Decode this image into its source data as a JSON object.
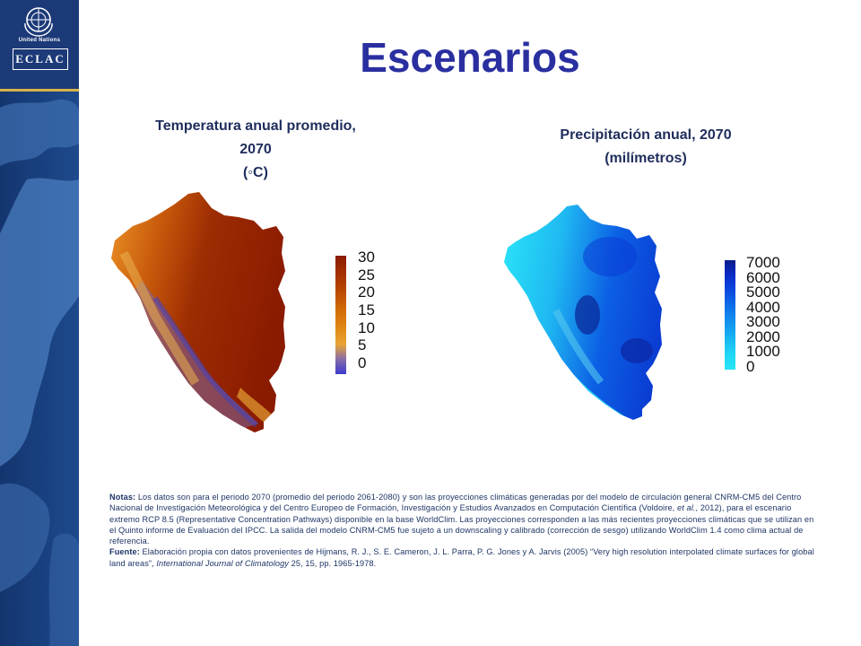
{
  "slide": {
    "title": "Escenarios",
    "logo": {
      "un_text": "United Nations",
      "eclac_text": "ECLAC"
    }
  },
  "maps": [
    {
      "title_line1": "Temperatura anual promedio,",
      "title_line2": "2070",
      "title_line3": "(◦C)",
      "colorbar": {
        "ticks": [
          "30",
          "25",
          "20",
          "15",
          "10",
          "5",
          "0"
        ],
        "colors": [
          "#8a1b00",
          "#b33f00",
          "#d06a05",
          "#e08a15",
          "#e8a436",
          "#8a6fa6",
          "#3b3ad0"
        ]
      }
    },
    {
      "title_line1": "Precipitación anual, 2070",
      "title_line2": "(milímetros)",
      "colorbar": {
        "ticks": [
          "7000",
          "6000",
          "5000",
          "4000",
          "3000",
          "2000",
          "1000",
          "0"
        ],
        "colors": [
          "#0a1a8a",
          "#0a2bc8",
          "#0b4ae0",
          "#0e6fe8",
          "#1193ee",
          "#17b4f3",
          "#1fd5f6",
          "#27e6f8"
        ]
      }
    }
  ],
  "notes": {
    "notas_label": "Notas:",
    "notas_text_1": "Los datos son para el periodo 2070 (promedio del periodo 2061-2080) y son las proyecciones climáticas generadas por del modelo de circulación general CNRM-CM5 del Centro Nacional de Investigación Meteorológica y del Centro Europeo de Formación, Investigación y Estudios Avanzados en Computación Científica (Voldoire,",
    "notas_italic": "et al.",
    "notas_text_2": ", 2012), para el escenario extremo RCP 8.5 (Representative Concentration Pathways) disponible en la base WorldClim. Las proyecciones corresponden a las más recientes proyecciones climáticas que se utilizan en el Quinto informe de Evaluación del IPCC. La salida del modelo CNRM-CM5 fue sujeto a un downscaling y calibrado (corrección de sesgo) utilizando WorldClim 1.4 como clima actual de referencia.",
    "fuente_label": "Fuente:",
    "fuente_text_1": "Elaboración propia con datos provenientes de Hijmans, R. J., S. E. Cameron, J. L. Parra, P. G. Jones y A. Jarvis (2005) “Very high resolution interpolated climate surfaces for global land areas”,",
    "fuente_italic": "International Journal of Climatology",
    "fuente_text_2": "25, 15, pp. 1965-1978."
  }
}
